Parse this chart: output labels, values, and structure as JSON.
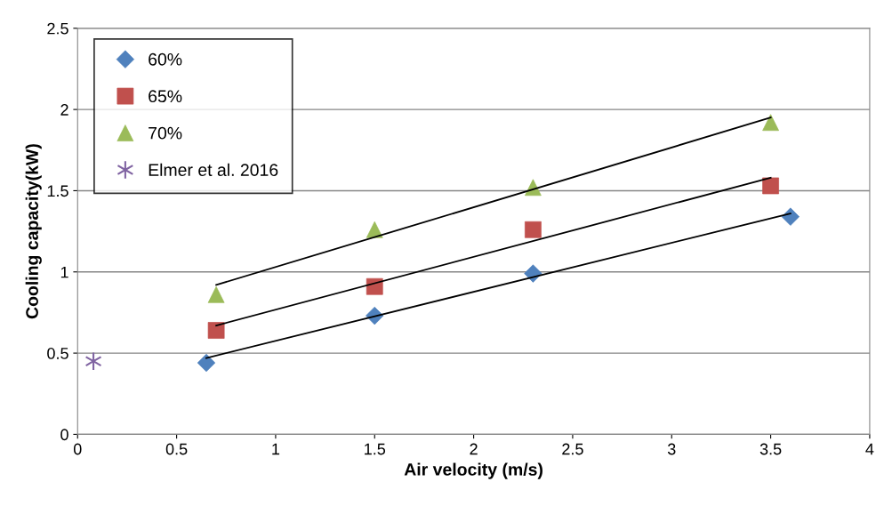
{
  "chart_data": {
    "type": "scatter",
    "xlabel": "Air velocity (m/s)",
    "ylabel": "Cooling capacity(kW)",
    "xlim": [
      0,
      4
    ],
    "xticks": [
      0,
      0.5,
      1,
      1.5,
      2,
      2.5,
      3,
      3.5,
      4
    ],
    "ylim": [
      0,
      2.5
    ],
    "yticks": [
      0,
      0.5,
      1,
      1.5,
      2,
      2.5
    ],
    "grid": "y",
    "legend": "top left",
    "series": [
      {
        "name": "60%",
        "color": "#4f81bd",
        "marker": "diamond",
        "x": [
          0.65,
          1.5,
          2.3,
          3.6
        ],
        "values": [
          0.44,
          0.73,
          0.99,
          1.34
        ]
      },
      {
        "name": "65%",
        "color": "#c0504d",
        "marker": "square",
        "x": [
          0.7,
          1.5,
          2.3,
          3.5
        ],
        "values": [
          0.64,
          0.91,
          1.26,
          1.53
        ]
      },
      {
        "name": "70%",
        "color": "#9bbb59",
        "marker": "triangle",
        "x": [
          0.7,
          1.5,
          2.3,
          3.5
        ],
        "values": [
          0.86,
          1.26,
          1.52,
          1.92
        ]
      },
      {
        "name": "Elmer et al. 2016",
        "color": "#8064a2",
        "marker": "cross",
        "x": [
          0.08
        ],
        "values": [
          0.45
        ]
      },
      {
        "type": "line",
        "color": "#000000",
        "marker": "none",
        "x": [
          0.65,
          3.6
        ],
        "values": [
          0.47,
          1.36
        ]
      },
      {
        "type": "line",
        "color": "#000000",
        "marker": "none",
        "x": [
          0.7,
          3.5
        ],
        "values": [
          0.67,
          1.58
        ]
      },
      {
        "type": "line",
        "color": "#000000",
        "marker": "none",
        "x": [
          0.7,
          3.5
        ],
        "values": [
          0.92,
          1.95
        ]
      }
    ]
  }
}
